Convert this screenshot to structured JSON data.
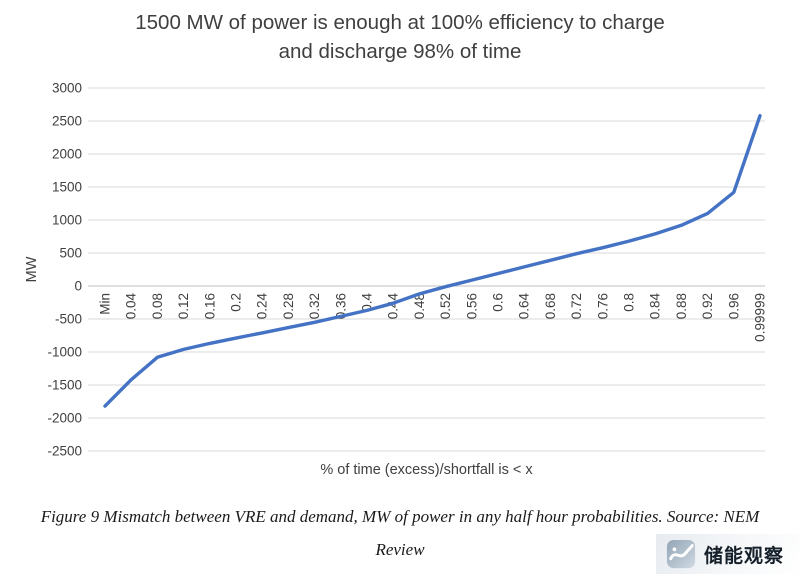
{
  "title": {
    "lines": [
      "1500 MW of power is enough at 100% efficiency to charge",
      "and discharge 98% of time"
    ]
  },
  "chart_data": {
    "type": "line",
    "categories": [
      "Min",
      "0.04",
      "0.08",
      "0.12",
      "0.16",
      "0.2",
      "0.24",
      "0.28",
      "0.32",
      "0.36",
      "0.4",
      "0.44",
      "0.48",
      "0.52",
      "0.56",
      "0.6",
      "0.64",
      "0.68",
      "0.72",
      "0.76",
      "0.8",
      "0.84",
      "0.88",
      "0.92",
      "0.96",
      "0.99999"
    ],
    "values": [
      -1820,
      -1420,
      -1080,
      -960,
      -870,
      -790,
      -710,
      -630,
      -550,
      -460,
      -370,
      -260,
      -120,
      -10,
      90,
      190,
      290,
      390,
      490,
      580,
      680,
      790,
      920,
      1100,
      1420,
      2580
    ],
    "title": "1500 MW of power is enough at 100% efficiency to charge and discharge 98% of time",
    "xlabel": "% of time (excess)/shortfall is < x",
    "ylabel": "MW",
    "ylim": [
      -2500,
      3000
    ],
    "ytick_step": 500,
    "grid": true,
    "legend": "none",
    "line_color": "#4472C4",
    "grid_color": "#d9d9d9",
    "zero_axis_color": "#bfbfbf"
  },
  "caption": {
    "lines": [
      "Figure 9 Mismatch between VRE and demand, MW of power in any half hour probabilities. Source: NEM",
      "Review"
    ]
  },
  "watermark": {
    "text": "储能观察"
  }
}
